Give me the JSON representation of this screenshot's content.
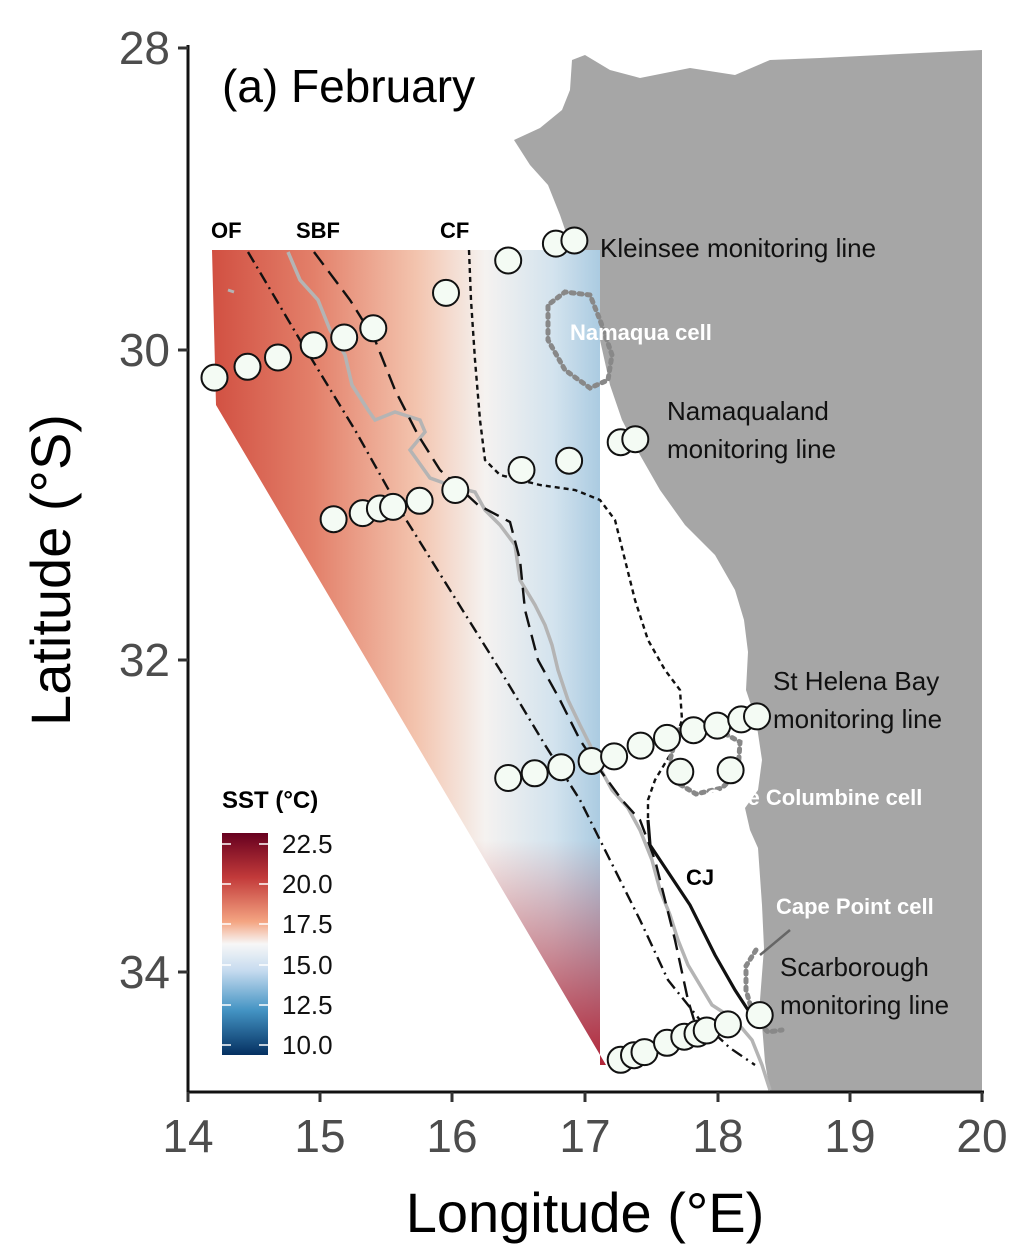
{
  "panel_title": "(a) February",
  "axes": {
    "xlabel": "Longitude (°E)",
    "ylabel": "Latitude (°S)",
    "x_ticks": [
      "14",
      "15",
      "16",
      "17",
      "18",
      "19",
      "20"
    ],
    "y_ticks": [
      "28",
      "30",
      "32",
      "34"
    ]
  },
  "fronts": {
    "of": "OF",
    "sbf": "SBF",
    "cf": "CF",
    "cj": "CJ"
  },
  "monitoring_lines": {
    "kleinsee": "Kleinsee monitoring line",
    "namaqualand_1": "Namaqualand",
    "namaqualand_2": "monitoring line",
    "st_helena_1": "St Helena Bay",
    "st_helena_2": "monitoring line",
    "scarborough_1": "Scarborough",
    "scarborough_2": "monitoring line"
  },
  "cells": {
    "namaqua": "Namaqua cell",
    "cape_columbine": "Cape Columbine cell",
    "cape_point": "Cape Point cell"
  },
  "legend": {
    "title": "SST (°C)",
    "ticks": [
      "22.5",
      "20.0",
      "17.5",
      "15.0",
      "12.5",
      "10.0"
    ]
  },
  "colors": {
    "land": "#a6a6a6",
    "isobath": "#b4b4b4",
    "warm": "#a50f15",
    "cool": "#08306b",
    "neutral": "#f7f7f7"
  },
  "chart_data": {
    "type": "map",
    "title": "(a) February",
    "xlabel": "Longitude (°E)",
    "ylabel": "Latitude (°S)",
    "xlim": [
      14,
      20
    ],
    "ylim": [
      34.7,
      28
    ],
    "colorbar": {
      "variable": "SST (°C)",
      "range": [
        10.0,
        22.5
      ]
    },
    "stations": [
      {
        "line": "Kleinsee",
        "lon": 14.2,
        "lat": 30.14
      },
      {
        "line": "Kleinsee",
        "lon": 14.45,
        "lat": 30.07
      },
      {
        "line": "Kleinsee",
        "lon": 14.68,
        "lat": 30.01
      },
      {
        "line": "Kleinsee",
        "lon": 14.95,
        "lat": 29.93
      },
      {
        "line": "Kleinsee",
        "lon": 15.18,
        "lat": 29.88
      },
      {
        "line": "Kleinsee",
        "lon": 15.4,
        "lat": 29.82
      },
      {
        "line": "Kleinsee",
        "lon": 15.95,
        "lat": 29.59
      },
      {
        "line": "Kleinsee",
        "lon": 16.42,
        "lat": 29.38
      },
      {
        "line": "Kleinsee",
        "lon": 16.78,
        "lat": 29.27
      },
      {
        "line": "Kleinsee",
        "lon": 16.92,
        "lat": 29.25
      },
      {
        "line": "Namaqualand",
        "lon": 15.1,
        "lat": 31.06
      },
      {
        "line": "Namaqualand",
        "lon": 15.32,
        "lat": 31.02
      },
      {
        "line": "Namaqualand",
        "lon": 15.45,
        "lat": 30.99
      },
      {
        "line": "Namaqualand",
        "lon": 15.55,
        "lat": 30.98
      },
      {
        "line": "Namaqualand",
        "lon": 15.75,
        "lat": 30.94
      },
      {
        "line": "Namaqualand",
        "lon": 16.02,
        "lat": 30.87
      },
      {
        "line": "Namaqualand",
        "lon": 16.52,
        "lat": 30.74
      },
      {
        "line": "Namaqualand",
        "lon": 16.88,
        "lat": 30.68
      },
      {
        "line": "Namaqualand",
        "lon": 17.27,
        "lat": 30.56
      },
      {
        "line": "Namaqualand",
        "lon": 17.38,
        "lat": 30.54
      },
      {
        "line": "St Helena Bay",
        "lon": 16.42,
        "lat": 32.74
      },
      {
        "line": "St Helena Bay",
        "lon": 16.62,
        "lat": 32.71
      },
      {
        "line": "St Helena Bay",
        "lon": 16.82,
        "lat": 32.67
      },
      {
        "line": "St Helena Bay",
        "lon": 17.05,
        "lat": 32.63
      },
      {
        "line": "St Helena Bay",
        "lon": 17.22,
        "lat": 32.6
      },
      {
        "line": "St Helena Bay",
        "lon": 17.42,
        "lat": 32.53
      },
      {
        "line": "St Helena Bay",
        "lon": 17.62,
        "lat": 32.48
      },
      {
        "line": "St Helena Bay",
        "lon": 17.82,
        "lat": 32.43
      },
      {
        "line": "St Helena Bay",
        "lon": 18.0,
        "lat": 32.4
      },
      {
        "line": "St Helena Bay",
        "lon": 18.18,
        "lat": 32.36
      },
      {
        "line": "St Helena Bay",
        "lon": 18.3,
        "lat": 32.34
      },
      {
        "line": "St Helena Bay",
        "lon": 17.72,
        "lat": 32.7
      },
      {
        "line": "St Helena Bay",
        "lon": 18.1,
        "lat": 32.69
      },
      {
        "line": "Scarborough",
        "lon": 17.27,
        "lat": 34.57
      },
      {
        "line": "Scarborough",
        "lon": 17.37,
        "lat": 34.54
      },
      {
        "line": "Scarborough",
        "lon": 17.45,
        "lat": 34.52
      },
      {
        "line": "Scarborough",
        "lon": 17.62,
        "lat": 34.46
      },
      {
        "line": "Scarborough",
        "lon": 17.75,
        "lat": 34.42
      },
      {
        "line": "Scarborough",
        "lon": 17.85,
        "lat": 34.4
      },
      {
        "line": "Scarborough",
        "lon": 17.92,
        "lat": 34.38
      },
      {
        "line": "Scarborough",
        "lon": 18.08,
        "lat": 34.34
      },
      {
        "line": "Scarborough",
        "lon": 18.32,
        "lat": 34.28
      }
    ]
  }
}
